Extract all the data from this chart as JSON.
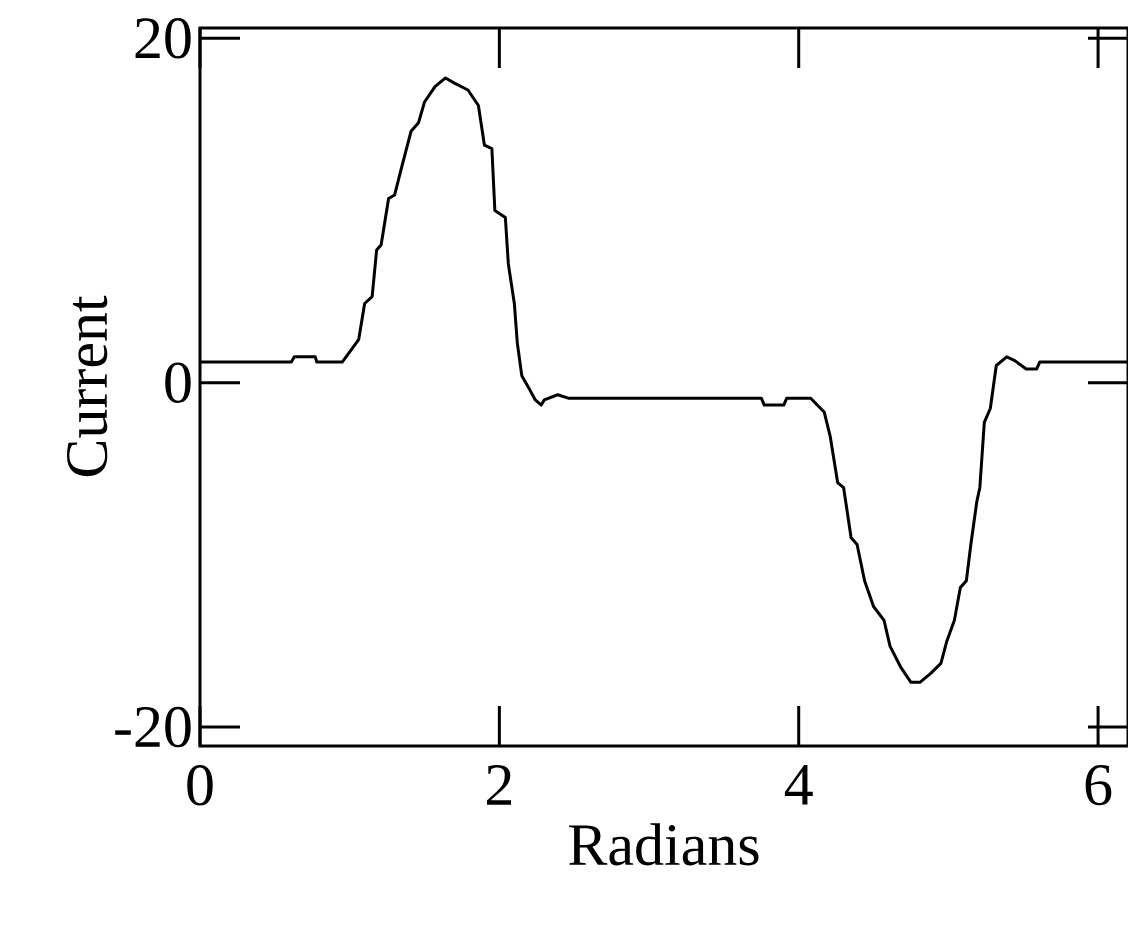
{
  "chart_data": {
    "type": "line",
    "xlabel": "Radians",
    "ylabel": "Current",
    "color": "#000000",
    "x": [
      0,
      0.61,
      0.63,
      0.77,
      0.78,
      0.95,
      1.01,
      1.06,
      1.1,
      1.15,
      1.18,
      1.21,
      1.26,
      1.3,
      1.35,
      1.41,
      1.46,
      1.5,
      1.57,
      1.64,
      1.7,
      1.79,
      1.86,
      1.9,
      1.95,
      1.97,
      2.04,
      2.06,
      2.1,
      2.12,
      2.15,
      2.19,
      2.24,
      2.28,
      2.3,
      2.39,
      2.46,
      3.75,
      3.77,
      3.9,
      3.92,
      4.08,
      4.17,
      4.21,
      4.26,
      4.3,
      4.35,
      4.39,
      4.44,
      4.5,
      4.57,
      4.61,
      4.68,
      4.75,
      4.81,
      4.88,
      4.95,
      4.99,
      5.04,
      5.08,
      5.12,
      5.15,
      5.19,
      5.21,
      5.24,
      5.28,
      5.32,
      5.39,
      5.44,
      5.52,
      5.59,
      5.61,
      6.2
    ],
    "values": [
      1.2,
      1.2,
      1.5,
      1.5,
      1.2,
      1.2,
      1.9,
      2.5,
      4.6,
      5.0,
      7.7,
      8.0,
      10.7,
      10.9,
      12.6,
      14.6,
      15.1,
      16.3,
      17.2,
      17.7,
      17.4,
      17.0,
      16.1,
      13.8,
      13.6,
      10.0,
      9.6,
      6.9,
      4.6,
      2.3,
      0.4,
      -0.2,
      -1.0,
      -1.3,
      -1.0,
      -0.7,
      -0.9,
      -0.9,
      -1.3,
      -1.3,
      -0.9,
      -0.9,
      -1.7,
      -3.1,
      -5.8,
      -6.1,
      -9.0,
      -9.4,
      -11.5,
      -13.0,
      -13.8,
      -15.3,
      -16.5,
      -17.4,
      -17.4,
      -16.9,
      -16.3,
      -15.0,
      -13.8,
      -11.9,
      -11.5,
      -9.4,
      -6.9,
      -6.1,
      -2.3,
      -1.5,
      1.0,
      1.5,
      1.3,
      0.8,
      0.8,
      1.2,
      1.2
    ],
    "xlim": [
      0,
      6.2
    ],
    "ylim": [
      -21.1,
      20.6
    ],
    "xticks": [
      0,
      2,
      4,
      6
    ],
    "yticks": [
      -20,
      0,
      20
    ],
    "marker": "none",
    "line_style": "solid",
    "grid": false
  }
}
